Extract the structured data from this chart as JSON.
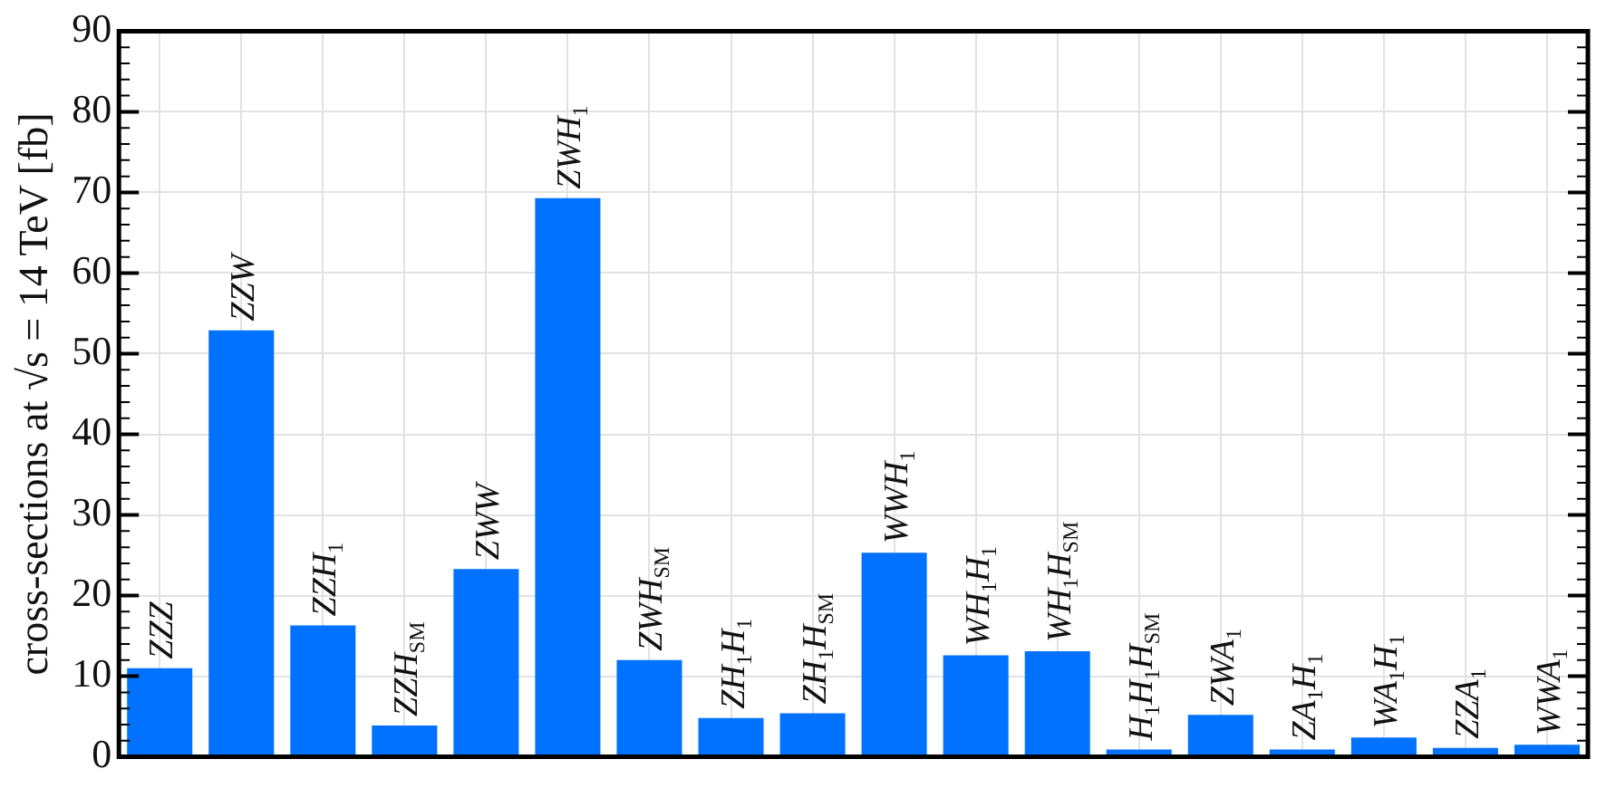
{
  "chart_data": {
    "type": "bar",
    "ylabel": "cross-sections at √s = 14 TeV [fb]",
    "categories": [
      "ZZZ",
      "ZZW",
      "ZZH$_{1}$",
      "ZZH$_{SM}$",
      "ZWW",
      "ZWH$_{1}$",
      "ZWH$_{SM}$",
      "ZH$_{1}$H$_{1}$",
      "ZH$_{1}$H$_{SM}$",
      "WWH$_{1}$",
      "WH$_{1}$H$_{1}$",
      "WH$_{1}$H$_{SM}$",
      "H$_{1}$H$_{1}$H$_{SM}$",
      "ZWA$_{1}$",
      "ZA$_{1}$H$_{1}$",
      "WA$_{1}$H$_{1}$",
      "ZZA$_{1}$",
      "WWA$_{1}$"
    ],
    "values": [
      11,
      52.9,
      16.3,
      3.9,
      23.3,
      69.3,
      12,
      4.8,
      5.4,
      25.3,
      12.6,
      13.1,
      0.9,
      5.2,
      0.9,
      2.4,
      1.1,
      1.5
    ],
    "color": "#0072ff",
    "ylim": [
      0,
      90
    ],
    "yticks": [
      0,
      {
        "value": 2,
        "label": null
      },
      {
        "value": 4,
        "label": null
      },
      {
        "value": 6,
        "label": null
      },
      {
        "value": 8,
        "label": null
      },
      10,
      {
        "value": 12,
        "label": null
      },
      {
        "value": 14,
        "label": null
      },
      {
        "value": 16,
        "label": null
      },
      {
        "value": 18,
        "label": null
      },
      20,
      {
        "value": 22,
        "label": null
      },
      {
        "value": 24,
        "label": null
      },
      {
        "value": 26,
        "label": null
      },
      {
        "value": 28,
        "label": null
      },
      30,
      {
        "value": 32,
        "label": null
      },
      {
        "value": 34,
        "label": null
      },
      {
        "value": 36,
        "label": null
      },
      {
        "value": 38,
        "label": null
      },
      40,
      {
        "value": 42,
        "label": null
      },
      {
        "value": 44,
        "label": null
      },
      {
        "value": 46,
        "label": null
      },
      {
        "value": 48,
        "label": null
      },
      50,
      {
        "value": 52,
        "label": null
      },
      {
        "value": 54,
        "label": null
      },
      {
        "value": 56,
        "label": null
      },
      {
        "value": 58,
        "label": null
      },
      60,
      {
        "value": 62,
        "label": null
      },
      {
        "value": 64,
        "label": null
      },
      {
        "value": 66,
        "label": null
      },
      {
        "value": 68,
        "label": null
      },
      70,
      {
        "value": 72,
        "label": null
      },
      {
        "value": 74,
        "label": null
      },
      {
        "value": 76,
        "label": null
      },
      {
        "value": 78,
        "label": null
      },
      80,
      {
        "value": 82,
        "label": null
      },
      {
        "value": 84,
        "label": null
      },
      {
        "value": 86,
        "label": null
      },
      {
        "value": 88,
        "label": null
      },
      90
    ],
    "grid": true
  }
}
